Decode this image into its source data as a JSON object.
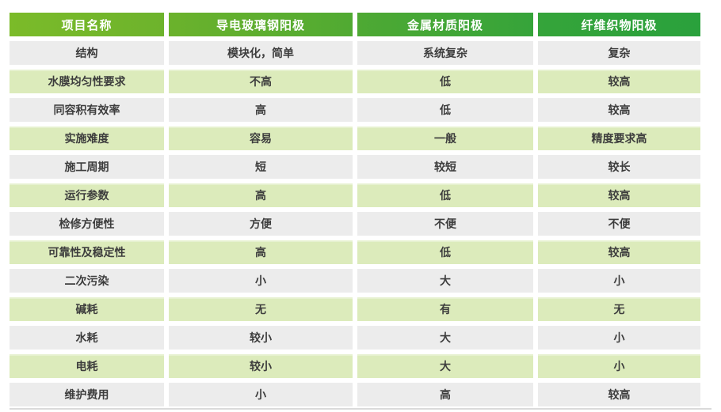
{
  "chart_data": {
    "type": "table",
    "columns": [
      "项目名称",
      "导电玻璃钢阳极",
      "金属材质阳极",
      "纤维织物阳极"
    ],
    "rows": [
      [
        "结构",
        "模块化，简单",
        "系统复杂",
        "复杂"
      ],
      [
        "水膜均匀性要求",
        "不高",
        "低",
        "较高"
      ],
      [
        "同容积有效率",
        "高",
        "低",
        "较高"
      ],
      [
        "实施难度",
        "容易",
        "一般",
        "精度要求高"
      ],
      [
        "施工周期",
        "短",
        "较短",
        "较长"
      ],
      [
        "运行参数",
        "高",
        "低",
        "较高"
      ],
      [
        "检修方便性",
        "方便",
        "不便",
        "不便"
      ],
      [
        "可靠性及稳定性",
        "高",
        "低",
        "较高"
      ],
      [
        "二次污染",
        "小",
        "大",
        "小"
      ],
      [
        "碱耗",
        "无",
        "有",
        "无"
      ],
      [
        "水耗",
        "较小",
        "大",
        "小"
      ],
      [
        "电耗",
        "较小",
        "大",
        "小"
      ],
      [
        "维护费用",
        "小",
        "高",
        "较高"
      ]
    ]
  },
  "colors": {
    "header_gradient_left": "#7bbb29",
    "header_gradient_right": "#2aa13c",
    "header_text": "#ffffff",
    "row_alt_gray": "#ececec",
    "row_alt_green": "#dcebbb",
    "body_text": "#3d3d3d",
    "bottom_rule": "#dadada"
  }
}
